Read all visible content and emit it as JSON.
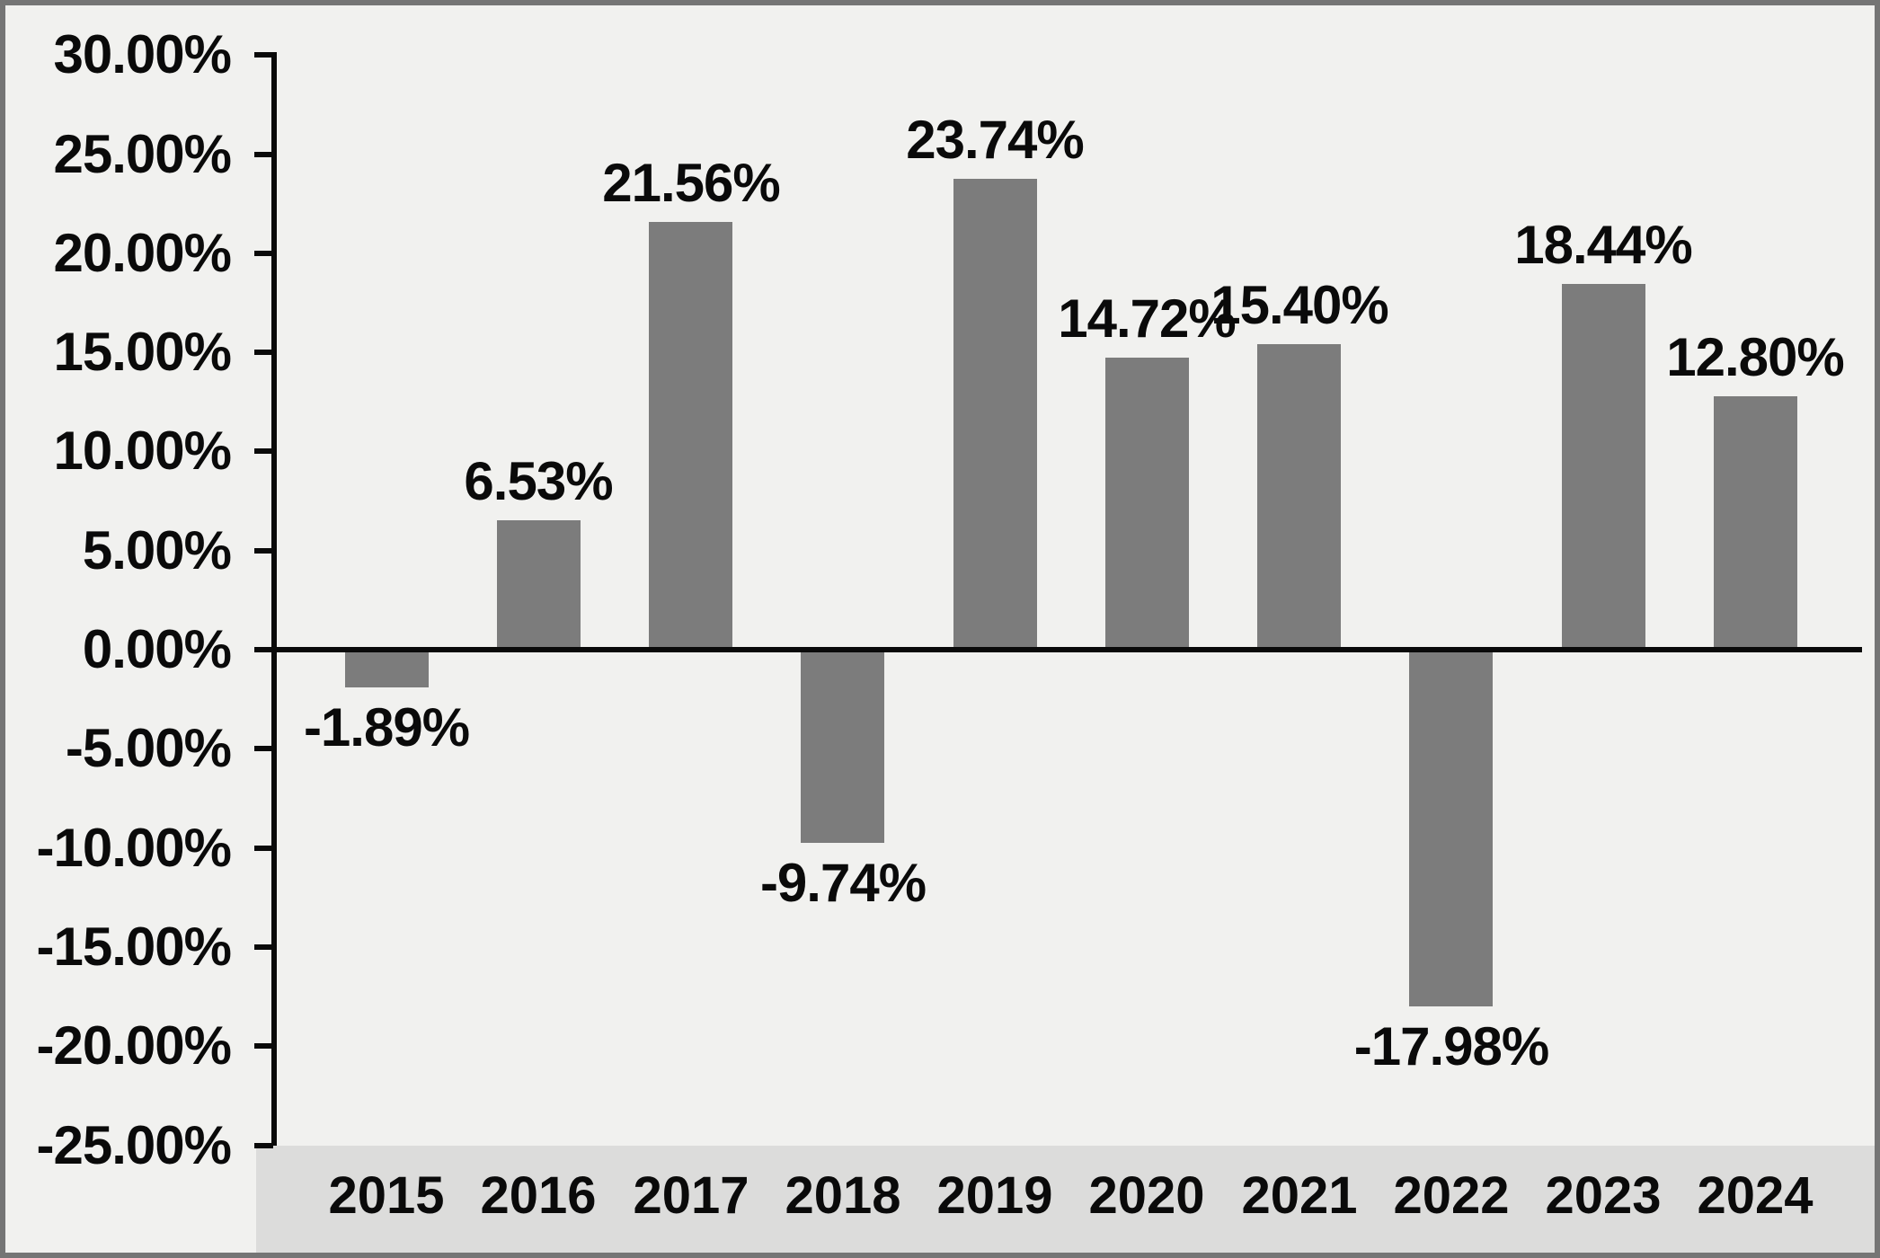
{
  "chart_data": {
    "type": "bar",
    "title": "",
    "xlabel": "",
    "ylabel": "",
    "grid": false,
    "legend": null,
    "categories": [
      "2015",
      "2016",
      "2017",
      "2018",
      "2019",
      "2020",
      "2021",
      "2022",
      "2023",
      "2024"
    ],
    "values": [
      -1.89,
      6.53,
      21.56,
      -9.74,
      23.74,
      14.72,
      15.4,
      -17.98,
      18.44,
      12.8
    ],
    "data_labels": [
      "-1.89%",
      "6.53%",
      "21.56%",
      "-9.74%",
      "23.74%",
      "14.72%",
      "15.40%",
      "-17.98%",
      "18.44%",
      "12.80%"
    ],
    "y_axis": {
      "min": -25,
      "max": 30,
      "step": 5,
      "tick_labels": [
        "30.00%",
        "25.00%",
        "20.00%",
        "15.00%",
        "10.00%",
        "5.00%",
        "0.00%",
        "-5.00%",
        "-10.00%",
        "-15.00%",
        "-20.00%",
        "-25.00%"
      ],
      "tick_values": [
        30,
        25,
        20,
        15,
        10,
        5,
        0,
        -5,
        -10,
        -15,
        -20,
        -25
      ]
    },
    "colors": {
      "bar": "#7c7c7c",
      "plot_background": "#f1f1ef",
      "category_band": "#dcdcdb",
      "axis": "#0a0a0a",
      "text": "#0a0a0a",
      "border": "#757575"
    }
  }
}
